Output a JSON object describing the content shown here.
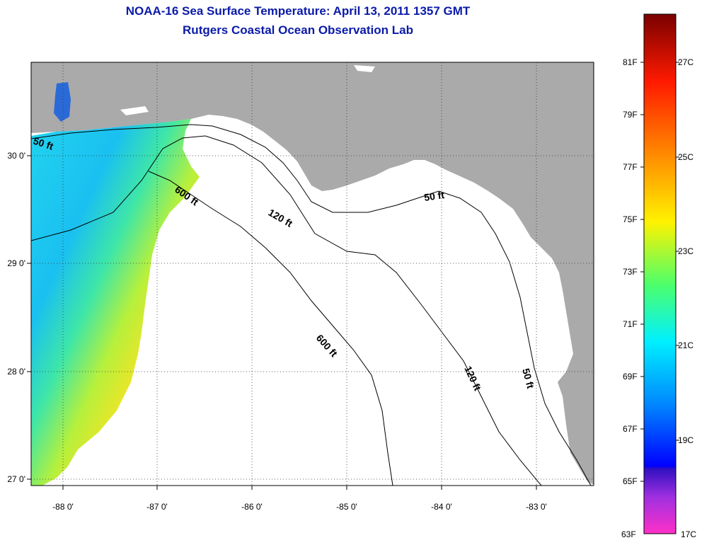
{
  "title": {
    "line1": "NOAA-16 Sea Surface Temperature:  April 13, 2011 1357 GMT",
    "line2": "Rutgers Coastal Ocean Observation Lab"
  },
  "axes": {
    "lon_ticks": [
      "-88 0'",
      "-87 0'",
      "-86 0'",
      "-85 0'",
      "-84 0'",
      "-83 0'"
    ],
    "lat_ticks": [
      "30 0'",
      "29 0'",
      "28 0'",
      "27 0'"
    ]
  },
  "contours": {
    "label_50": "50 ft",
    "label_120": "120 ft",
    "label_600": "600 ft"
  },
  "colorbar": {
    "fahrenheit": [
      "81F",
      "79F",
      "77F",
      "75F",
      "73F",
      "71F",
      "69F",
      "67F",
      "65F",
      "63F"
    ],
    "celsius": [
      "27C",
      "25C",
      "23C",
      "21C",
      "19C",
      "17C"
    ]
  },
  "colors": {
    "land": "#aaaaaa",
    "title": "#0a1aa8"
  }
}
